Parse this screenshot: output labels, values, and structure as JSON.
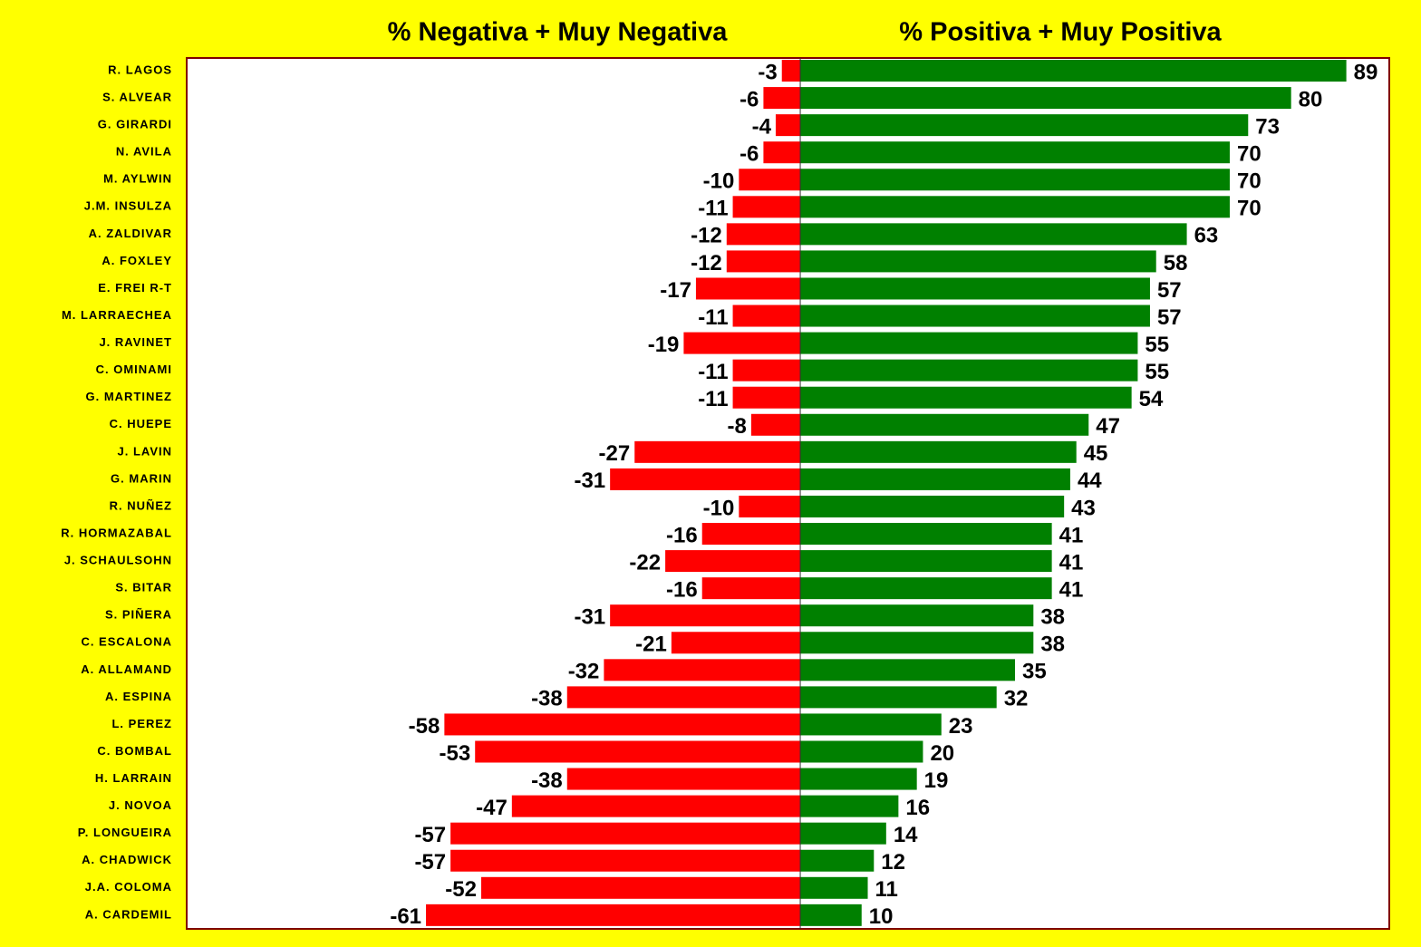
{
  "chart_data": {
    "type": "diverging_bar",
    "categories": [
      "R. LAGOS",
      "S. ALVEAR",
      "G. GIRARDI",
      "N. AVILA",
      "M. AYLWIN",
      "J.M. INSULZA",
      "A. ZALDIVAR",
      "A. FOXLEY",
      "E. FREI R-T",
      "M. LARRAECHEA",
      "J. RAVINET",
      "C. OMINAMI",
      "G. MARTINEZ",
      "C. HUEPE",
      "J. LAVIN",
      "G. MARIN",
      "R. NUÑEZ",
      "R. HORMAZABAL",
      "J. SCHAULSOHN",
      "S. BITAR",
      "S. PIÑERA",
      "C. ESCALONA",
      "A. ALLAMAND",
      "A. ESPINA",
      "L. PEREZ",
      "C. BOMBAL",
      "H. LARRAIN",
      "J. NOVOA",
      "P. LONGUEIRA",
      "A. CHADWICK",
      "J.A. COLOMA",
      "A. CARDEMIL"
    ],
    "series": [
      {
        "name": "% Negativa + Muy Negativa",
        "color": "#ff0000",
        "values": [
          -3,
          -6,
          -4,
          -6,
          -10,
          -11,
          -12,
          -12,
          -17,
          -11,
          -19,
          -11,
          -11,
          -8,
          -27,
          -31,
          -10,
          -16,
          -22,
          -16,
          -31,
          -21,
          -32,
          -38,
          -58,
          -53,
          -38,
          -47,
          -57,
          -57,
          -52,
          -61
        ]
      },
      {
        "name": "% Positiva + Muy Positiva",
        "color": "#008000",
        "values": [
          89,
          80,
          73,
          70,
          70,
          70,
          63,
          58,
          57,
          57,
          55,
          55,
          54,
          47,
          45,
          44,
          43,
          41,
          41,
          41,
          38,
          38,
          35,
          32,
          23,
          20,
          19,
          16,
          14,
          12,
          11,
          10
        ]
      }
    ],
    "xlim": [
      -100,
      96
    ]
  }
}
